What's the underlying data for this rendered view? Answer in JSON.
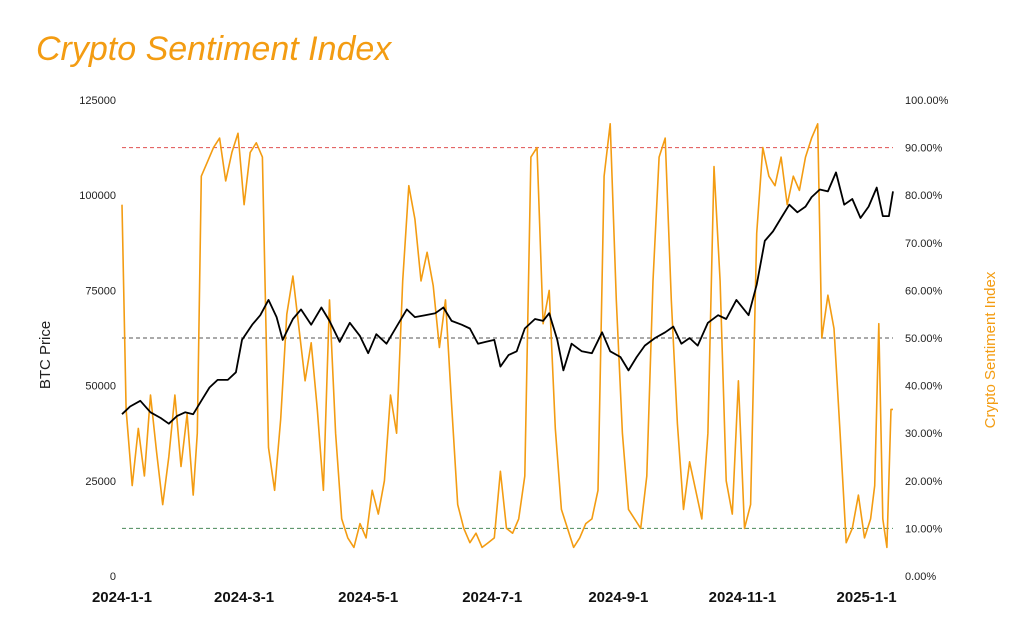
{
  "chart_data": {
    "type": "line",
    "title": "Crypto Sentiment Index",
    "y_left_label": "BTC Price",
    "y_right_label": "Crypto Sentiment Index",
    "y_left_lim": [
      0,
      125000
    ],
    "y_right_lim": [
      0,
      1.0
    ],
    "y_left_ticks": [
      "0",
      "25000",
      "50000",
      "75000",
      "100000",
      "125000"
    ],
    "y_right_ticks": [
      "0.00%",
      "10.00%",
      "20.00%",
      "30.00%",
      "40.00%",
      "50.00%",
      "60.00%",
      "70.00%",
      "80.00%",
      "90.00%",
      "100.00%"
    ],
    "x_ticks": [
      "2024-1-1",
      "2024-3-1",
      "2024-5-1",
      "2024-7-1",
      "2024-9-1",
      "2024-11-1",
      "2025-1-1"
    ],
    "x_range": [
      "2024-01-01",
      "2025-01-14"
    ],
    "grid": false,
    "colors": {
      "btc": "#000000",
      "sentiment": "#f39c12",
      "line_90": "#e05050",
      "line_50": "#555555",
      "line_10": "#4a8a5a"
    },
    "reference_lines": [
      {
        "value": 0.9,
        "style": "dashed",
        "color": "#e05050"
      },
      {
        "value": 0.5,
        "style": "dashed",
        "color": "#555555"
      },
      {
        "value": 0.1,
        "style": "dashed",
        "color": "#4a8a5a"
      }
    ],
    "series": [
      {
        "name": "BTC Price",
        "axis": "left",
        "points": [
          [
            "2024-01-01",
            42500
          ],
          [
            "2024-01-05",
            44500
          ],
          [
            "2024-01-10",
            46000
          ],
          [
            "2024-01-15",
            43000
          ],
          [
            "2024-01-20",
            41500
          ],
          [
            "2024-01-24",
            40000
          ],
          [
            "2024-01-28",
            42000
          ],
          [
            "2024-02-01",
            43000
          ],
          [
            "2024-02-05",
            42500
          ],
          [
            "2024-02-09",
            46000
          ],
          [
            "2024-02-13",
            49500
          ],
          [
            "2024-02-17",
            51500
          ],
          [
            "2024-02-22",
            51500
          ],
          [
            "2024-02-26",
            53500
          ],
          [
            "2024-02-29",
            62000
          ],
          [
            "2024-03-05",
            66000
          ],
          [
            "2024-03-09",
            68500
          ],
          [
            "2024-03-13",
            72500
          ],
          [
            "2024-03-17",
            68000
          ],
          [
            "2024-03-20",
            62000
          ],
          [
            "2024-03-25",
            67500
          ],
          [
            "2024-03-29",
            70000
          ],
          [
            "2024-04-03",
            66000
          ],
          [
            "2024-04-08",
            70500
          ],
          [
            "2024-04-12",
            67000
          ],
          [
            "2024-04-17",
            61500
          ],
          [
            "2024-04-22",
            66500
          ],
          [
            "2024-04-27",
            63000
          ],
          [
            "2024-05-01",
            58500
          ],
          [
            "2024-05-05",
            63500
          ],
          [
            "2024-05-10",
            61000
          ],
          [
            "2024-05-15",
            65500
          ],
          [
            "2024-05-20",
            70000
          ],
          [
            "2024-05-24",
            68000
          ],
          [
            "2024-05-29",
            68500
          ],
          [
            "2024-06-03",
            69000
          ],
          [
            "2024-06-07",
            70500
          ],
          [
            "2024-06-11",
            67000
          ],
          [
            "2024-06-16",
            66000
          ],
          [
            "2024-06-20",
            65000
          ],
          [
            "2024-06-24",
            61000
          ],
          [
            "2024-06-28",
            61500
          ],
          [
            "2024-07-02",
            62000
          ],
          [
            "2024-07-05",
            55000
          ],
          [
            "2024-07-09",
            58000
          ],
          [
            "2024-07-13",
            59000
          ],
          [
            "2024-07-17",
            65000
          ],
          [
            "2024-07-22",
            67500
          ],
          [
            "2024-07-26",
            67000
          ],
          [
            "2024-07-29",
            69000
          ],
          [
            "2024-08-02",
            62000
          ],
          [
            "2024-08-05",
            54000
          ],
          [
            "2024-08-09",
            61000
          ],
          [
            "2024-08-14",
            59000
          ],
          [
            "2024-08-19",
            58500
          ],
          [
            "2024-08-24",
            64000
          ],
          [
            "2024-08-28",
            59000
          ],
          [
            "2024-09-02",
            57500
          ],
          [
            "2024-09-06",
            54000
          ],
          [
            "2024-09-10",
            57500
          ],
          [
            "2024-09-14",
            60500
          ],
          [
            "2024-09-19",
            62500
          ],
          [
            "2024-09-24",
            64000
          ],
          [
            "2024-09-28",
            65500
          ],
          [
            "2024-10-02",
            61000
          ],
          [
            "2024-10-06",
            62500
          ],
          [
            "2024-10-10",
            60500
          ],
          [
            "2024-10-15",
            66500
          ],
          [
            "2024-10-20",
            68500
          ],
          [
            "2024-10-24",
            67500
          ],
          [
            "2024-10-29",
            72500
          ],
          [
            "2024-11-04",
            68500
          ],
          [
            "2024-11-08",
            76500
          ],
          [
            "2024-11-12",
            88000
          ],
          [
            "2024-11-16",
            90500
          ],
          [
            "2024-11-20",
            94000
          ],
          [
            "2024-11-24",
            97500
          ],
          [
            "2024-11-28",
            95500
          ],
          [
            "2024-12-02",
            97000
          ],
          [
            "2024-12-05",
            99500
          ],
          [
            "2024-12-09",
            101500
          ],
          [
            "2024-12-13",
            101000
          ],
          [
            "2024-12-17",
            106000
          ],
          [
            "2024-12-21",
            97500
          ],
          [
            "2024-12-25",
            99000
          ],
          [
            "2024-12-29",
            94000
          ],
          [
            "2025-01-02",
            97000
          ],
          [
            "2025-01-06",
            102000
          ],
          [
            "2025-01-09",
            94500
          ],
          [
            "2025-01-12",
            94500
          ],
          [
            "2025-01-14",
            101000
          ]
        ]
      },
      {
        "name": "Crypto Sentiment Index",
        "axis": "right",
        "points": [
          [
            "2024-01-01",
            0.78
          ],
          [
            "2024-01-03",
            0.35
          ],
          [
            "2024-01-06",
            0.19
          ],
          [
            "2024-01-09",
            0.31
          ],
          [
            "2024-01-12",
            0.21
          ],
          [
            "2024-01-15",
            0.38
          ],
          [
            "2024-01-18",
            0.26
          ],
          [
            "2024-01-21",
            0.15
          ],
          [
            "2024-01-24",
            0.25
          ],
          [
            "2024-01-27",
            0.38
          ],
          [
            "2024-01-30",
            0.23
          ],
          [
            "2024-02-02",
            0.34
          ],
          [
            "2024-02-05",
            0.17
          ],
          [
            "2024-02-07",
            0.3
          ],
          [
            "2024-02-09",
            0.84
          ],
          [
            "2024-02-12",
            0.87
          ],
          [
            "2024-02-15",
            0.9
          ],
          [
            "2024-02-18",
            0.92
          ],
          [
            "2024-02-21",
            0.83
          ],
          [
            "2024-02-24",
            0.89
          ],
          [
            "2024-02-27",
            0.93
          ],
          [
            "2024-03-01",
            0.78
          ],
          [
            "2024-03-04",
            0.89
          ],
          [
            "2024-03-07",
            0.91
          ],
          [
            "2024-03-10",
            0.88
          ],
          [
            "2024-03-13",
            0.27
          ],
          [
            "2024-03-16",
            0.18
          ],
          [
            "2024-03-19",
            0.33
          ],
          [
            "2024-03-22",
            0.55
          ],
          [
            "2024-03-25",
            0.63
          ],
          [
            "2024-03-28",
            0.52
          ],
          [
            "2024-03-31",
            0.41
          ],
          [
            "2024-04-03",
            0.49
          ],
          [
            "2024-04-06",
            0.35
          ],
          [
            "2024-04-09",
            0.18
          ],
          [
            "2024-04-12",
            0.58
          ],
          [
            "2024-04-15",
            0.3
          ],
          [
            "2024-04-18",
            0.12
          ],
          [
            "2024-04-21",
            0.08
          ],
          [
            "2024-04-24",
            0.06
          ],
          [
            "2024-04-27",
            0.11
          ],
          [
            "2024-04-30",
            0.08
          ],
          [
            "2024-05-03",
            0.18
          ],
          [
            "2024-05-06",
            0.13
          ],
          [
            "2024-05-09",
            0.2
          ],
          [
            "2024-05-12",
            0.38
          ],
          [
            "2024-05-15",
            0.3
          ],
          [
            "2024-05-18",
            0.62
          ],
          [
            "2024-05-21",
            0.82
          ],
          [
            "2024-05-24",
            0.75
          ],
          [
            "2024-05-27",
            0.62
          ],
          [
            "2024-05-30",
            0.68
          ],
          [
            "2024-06-02",
            0.61
          ],
          [
            "2024-06-05",
            0.48
          ],
          [
            "2024-06-08",
            0.58
          ],
          [
            "2024-06-11",
            0.36
          ],
          [
            "2024-06-14",
            0.15
          ],
          [
            "2024-06-17",
            0.1
          ],
          [
            "2024-06-20",
            0.07
          ],
          [
            "2024-06-23",
            0.09
          ],
          [
            "2024-06-26",
            0.06
          ],
          [
            "2024-06-29",
            0.07
          ],
          [
            "2024-07-02",
            0.08
          ],
          [
            "2024-07-05",
            0.22
          ],
          [
            "2024-07-08",
            0.1
          ],
          [
            "2024-07-11",
            0.09
          ],
          [
            "2024-07-14",
            0.12
          ],
          [
            "2024-07-17",
            0.21
          ],
          [
            "2024-07-20",
            0.88
          ],
          [
            "2024-07-23",
            0.9
          ],
          [
            "2024-07-26",
            0.53
          ],
          [
            "2024-07-29",
            0.6
          ],
          [
            "2024-08-01",
            0.31
          ],
          [
            "2024-08-04",
            0.14
          ],
          [
            "2024-08-07",
            0.1
          ],
          [
            "2024-08-10",
            0.06
          ],
          [
            "2024-08-13",
            0.08
          ],
          [
            "2024-08-16",
            0.11
          ],
          [
            "2024-08-19",
            0.12
          ],
          [
            "2024-08-22",
            0.18
          ],
          [
            "2024-08-25",
            0.84
          ],
          [
            "2024-08-28",
            0.95
          ],
          [
            "2024-08-31",
            0.58
          ],
          [
            "2024-09-03",
            0.3
          ],
          [
            "2024-09-06",
            0.14
          ],
          [
            "2024-09-09",
            0.12
          ],
          [
            "2024-09-12",
            0.1
          ],
          [
            "2024-09-15",
            0.21
          ],
          [
            "2024-09-18",
            0.62
          ],
          [
            "2024-09-21",
            0.88
          ],
          [
            "2024-09-24",
            0.92
          ],
          [
            "2024-09-27",
            0.58
          ],
          [
            "2024-09-30",
            0.32
          ],
          [
            "2024-10-03",
            0.14
          ],
          [
            "2024-10-06",
            0.24
          ],
          [
            "2024-10-09",
            0.18
          ],
          [
            "2024-10-12",
            0.12
          ],
          [
            "2024-10-15",
            0.3
          ],
          [
            "2024-10-18",
            0.86
          ],
          [
            "2024-10-21",
            0.62
          ],
          [
            "2024-10-24",
            0.2
          ],
          [
            "2024-10-27",
            0.13
          ],
          [
            "2024-10-30",
            0.41
          ],
          [
            "2024-11-02",
            0.1
          ],
          [
            "2024-11-05",
            0.15
          ],
          [
            "2024-11-08",
            0.72
          ],
          [
            "2024-11-11",
            0.9
          ],
          [
            "2024-11-14",
            0.84
          ],
          [
            "2024-11-17",
            0.82
          ],
          [
            "2024-11-20",
            0.88
          ],
          [
            "2024-11-23",
            0.78
          ],
          [
            "2024-11-26",
            0.84
          ],
          [
            "2024-11-29",
            0.81
          ],
          [
            "2024-12-02",
            0.88
          ],
          [
            "2024-12-05",
            0.92
          ],
          [
            "2024-12-08",
            0.95
          ],
          [
            "2024-12-10",
            0.5
          ],
          [
            "2024-12-13",
            0.59
          ],
          [
            "2024-12-16",
            0.52
          ],
          [
            "2024-12-19",
            0.3
          ],
          [
            "2024-12-22",
            0.07
          ],
          [
            "2024-12-25",
            0.1
          ],
          [
            "2024-12-28",
            0.17
          ],
          [
            "2024-12-31",
            0.08
          ],
          [
            "2025-01-03",
            0.12
          ],
          [
            "2025-01-05",
            0.19
          ],
          [
            "2025-01-07",
            0.53
          ],
          [
            "2025-01-09",
            0.12
          ],
          [
            "2025-01-11",
            0.06
          ],
          [
            "2025-01-13",
            0.35
          ],
          [
            "2025-01-14",
            0.35
          ]
        ]
      }
    ]
  }
}
